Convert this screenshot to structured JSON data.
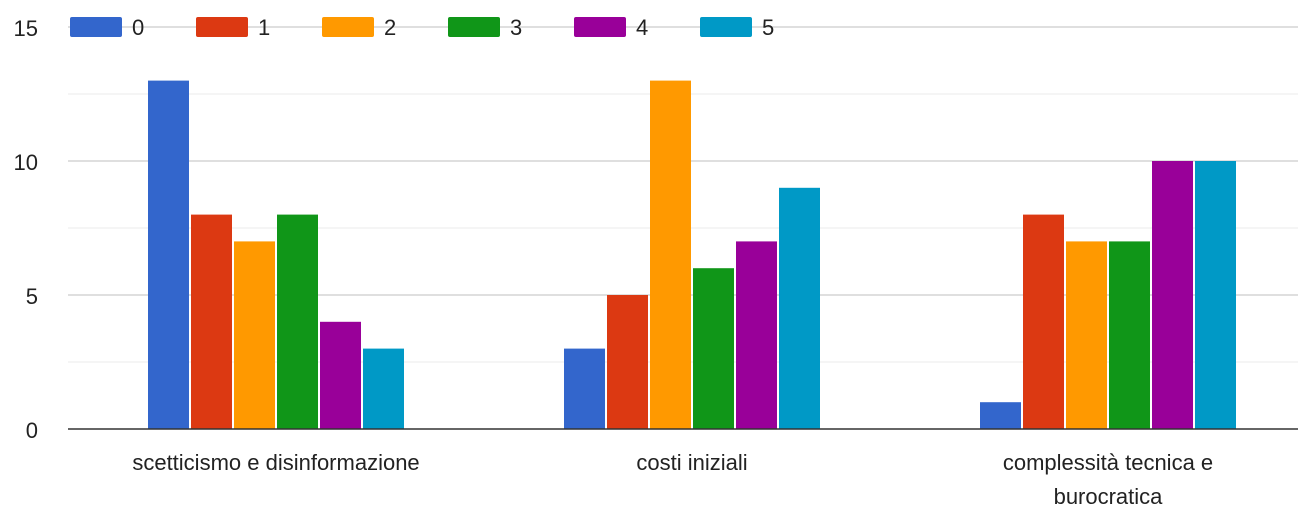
{
  "chart_data": {
    "type": "bar",
    "categories": [
      [
        "scetticismo e disinformazione"
      ],
      [
        "costi iniziali"
      ],
      [
        "complessità tecnica e",
        "burocratica"
      ]
    ],
    "series": [
      {
        "name": "0",
        "color": "#3366cc",
        "values": [
          13,
          3,
          1
        ]
      },
      {
        "name": "1",
        "color": "#dc3912",
        "values": [
          8,
          5,
          8
        ]
      },
      {
        "name": "2",
        "color": "#ff9900",
        "values": [
          7,
          13,
          7
        ]
      },
      {
        "name": "3",
        "color": "#109618",
        "values": [
          8,
          6,
          7
        ]
      },
      {
        "name": "4",
        "color": "#990099",
        "values": [
          4,
          7,
          10
        ]
      },
      {
        "name": "5",
        "color": "#0099c6",
        "values": [
          3,
          9,
          10
        ]
      }
    ],
    "ylim": [
      0,
      15
    ],
    "yticks": [
      0,
      5,
      10,
      15
    ],
    "minor_gridlines": [
      2.5,
      7.5,
      12.5
    ],
    "grid": true,
    "legend_position": "top"
  }
}
